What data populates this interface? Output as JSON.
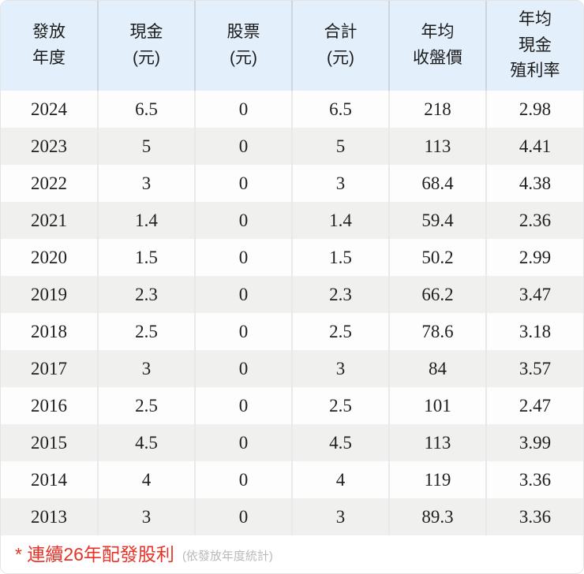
{
  "table": {
    "columns": [
      {
        "label": "發放\n年度"
      },
      {
        "label": "現金\n(元)"
      },
      {
        "label": "股票\n(元)"
      },
      {
        "label": "合計\n(元)"
      },
      {
        "label": "年均\n收盤價"
      },
      {
        "label": "年均\n現金\n殖利率"
      }
    ],
    "rows": [
      {
        "cells": [
          "2024",
          "6.5",
          "0",
          "6.5",
          "218",
          "2.98"
        ]
      },
      {
        "cells": [
          "2023",
          "5",
          "0",
          "5",
          "113",
          "4.41"
        ]
      },
      {
        "cells": [
          "2022",
          "3",
          "0",
          "3",
          "68.4",
          "4.38"
        ]
      },
      {
        "cells": [
          "2021",
          "1.4",
          "0",
          "1.4",
          "59.4",
          "2.36"
        ]
      },
      {
        "cells": [
          "2020",
          "1.5",
          "0",
          "1.5",
          "50.2",
          "2.99"
        ]
      },
      {
        "cells": [
          "2019",
          "2.3",
          "0",
          "2.3",
          "66.2",
          "3.47"
        ]
      },
      {
        "cells": [
          "2018",
          "2.5",
          "0",
          "2.5",
          "78.6",
          "3.18"
        ]
      },
      {
        "cells": [
          "2017",
          "3",
          "0",
          "3",
          "84",
          "3.57"
        ]
      },
      {
        "cells": [
          "2016",
          "2.5",
          "0",
          "2.5",
          "101",
          "2.47"
        ]
      },
      {
        "cells": [
          "2015",
          "4.5",
          "0",
          "4.5",
          "113",
          "3.99"
        ]
      },
      {
        "cells": [
          "2014",
          "4",
          "0",
          "4",
          "119",
          "3.36"
        ]
      },
      {
        "cells": [
          "2013",
          "3",
          "0",
          "3",
          "89.3",
          "3.36"
        ]
      }
    ]
  },
  "footer": {
    "note_red": "* 連續26年配發股利",
    "note_gray": "(依發放年度統計)"
  },
  "colors": {
    "header_bg": "#e3effb",
    "stripe_bg": "#f0f0ef",
    "header_separator": "#ccd5e0",
    "body_separator": "#e9e9e9",
    "accent_red": "#e63226",
    "muted_gray": "#b9b9b9",
    "text": "#1f1f1f"
  },
  "chart_data": {
    "type": "table",
    "title": "",
    "columns": [
      "發放年度",
      "現金(元)",
      "股票(元)",
      "合計(元)",
      "年均收盤價",
      "年均現金殖利率"
    ],
    "rows": [
      [
        2024,
        6.5,
        0,
        6.5,
        218,
        2.98
      ],
      [
        2023,
        5,
        0,
        5,
        113,
        4.41
      ],
      [
        2022,
        3,
        0,
        3,
        68.4,
        4.38
      ],
      [
        2021,
        1.4,
        0,
        1.4,
        59.4,
        2.36
      ],
      [
        2020,
        1.5,
        0,
        1.5,
        50.2,
        2.99
      ],
      [
        2019,
        2.3,
        0,
        2.3,
        66.2,
        3.47
      ],
      [
        2018,
        2.5,
        0,
        2.5,
        78.6,
        3.18
      ],
      [
        2017,
        3,
        0,
        3,
        84,
        3.57
      ],
      [
        2016,
        2.5,
        0,
        2.5,
        101,
        2.47
      ],
      [
        2015,
        4.5,
        0,
        4.5,
        113,
        3.99
      ],
      [
        2014,
        4,
        0,
        4,
        119,
        3.36
      ],
      [
        2013,
        3,
        0,
        3,
        89.3,
        3.36
      ]
    ],
    "footnote": "* 連續26年配發股利 (依發放年度統計)",
    "layout": {
      "zebra_striping": true,
      "header_position": "top",
      "grid": "vertical-separators-only"
    }
  }
}
